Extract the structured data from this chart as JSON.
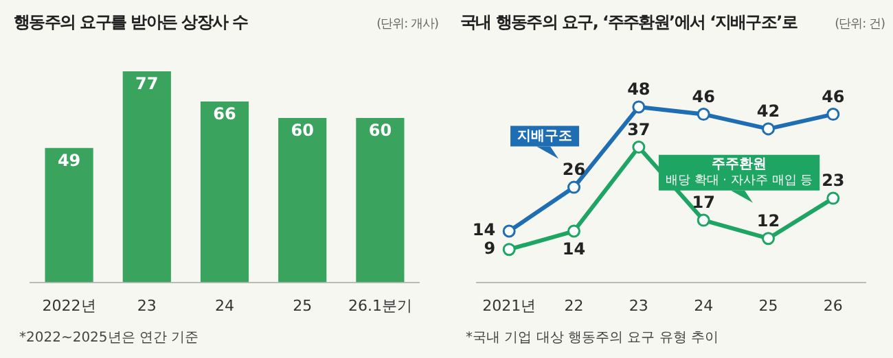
{
  "chart_data": [
    {
      "type": "bar",
      "title": "행동주의 요구를 받아든 상장사 수",
      "subtitle": "(단위: 개사)",
      "categories": [
        "2022년",
        "23",
        "24",
        "25",
        "26.1분기"
      ],
      "values": [
        49,
        77,
        66,
        60,
        60
      ],
      "color": "#3aa35e",
      "data_labels": true,
      "annotations": [
        "*2022~2025년은 연간 기준"
      ]
    },
    {
      "type": "line",
      "title": "국내 행동주의 요구, ‘주주환원’에서 ‘지배구조’로",
      "subtitle": "(단위: 건)",
      "categories": [
        "2021년",
        "22",
        "23",
        "24",
        "25",
        "26"
      ],
      "series": [
        {
          "name": "지배구조",
          "color": "#1f6db3",
          "values": [
            14,
            26,
            48,
            46,
            42,
            46
          ]
        },
        {
          "name": "주주환원",
          "color": "#1ea463",
          "values": [
            9,
            14,
            37,
            17,
            12,
            23
          ]
        }
      ],
      "marker": "circle",
      "data_labels": true,
      "annotations": [
        "배당 확대 · 자사주 매입 등",
        "*국내 기업 대상 행동주의 요구 유형 추이"
      ]
    }
  ]
}
